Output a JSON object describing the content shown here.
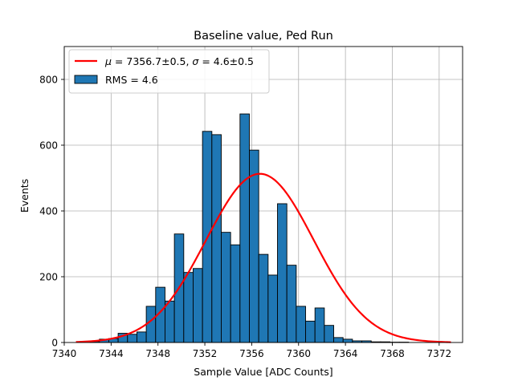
{
  "chart_data": {
    "type": "bar",
    "title": "Baseline value, Ped Run",
    "xlabel": "Sample Value [ADC Counts]",
    "ylabel": "Events",
    "xlim": [
      7340.0,
      7374.0
    ],
    "ylim": [
      0,
      900
    ],
    "xticks": [
      7340,
      7344,
      7348,
      7352,
      7356,
      7360,
      7364,
      7368,
      7372
    ],
    "yticks": [
      0,
      200,
      400,
      600,
      800
    ],
    "grid": true,
    "legend_position": "top-left",
    "bin_width": 0.8,
    "histogram": {
      "name": "RMS = 4.6",
      "color": "#1f77b4",
      "bin_start": [
        7342.2,
        7343.0,
        7343.8,
        7344.6,
        7345.4,
        7346.2,
        7347.0,
        7347.8,
        7348.6,
        7349.4,
        7350.2,
        7351.0,
        7351.8,
        7352.6,
        7353.4,
        7354.2,
        7355.0,
        7355.8,
        7356.6,
        7357.4,
        7358.2,
        7359.0,
        7359.8,
        7360.6,
        7361.4,
        7362.2,
        7363.0,
        7363.8,
        7364.6,
        7365.4,
        7366.2,
        7367.0,
        7367.8,
        7368.6
      ],
      "counts": [
        3,
        10,
        12,
        28,
        25,
        32,
        110,
        168,
        126,
        330,
        213,
        225,
        642,
        632,
        335,
        297,
        695,
        585,
        268,
        205,
        422,
        235,
        110,
        65,
        105,
        52,
        15,
        10,
        5,
        5,
        2,
        2,
        1,
        1
      ]
    },
    "fit": {
      "name": "$\\mu = 7356.7\\pm0.5$, $\\sigma = 4.6\\pm0.5$",
      "legend_label": {
        "mu_symbol": "μ",
        "mu_text": " = 7356.7±0.5, ",
        "sigma_symbol": "σ",
        "sigma_text": " = 4.6±0.5"
      },
      "color": "#ff0000",
      "mu": 7356.7,
      "sigma": 4.6,
      "amplitude": 513,
      "x_range": [
        7341.0,
        7373.0
      ]
    }
  }
}
